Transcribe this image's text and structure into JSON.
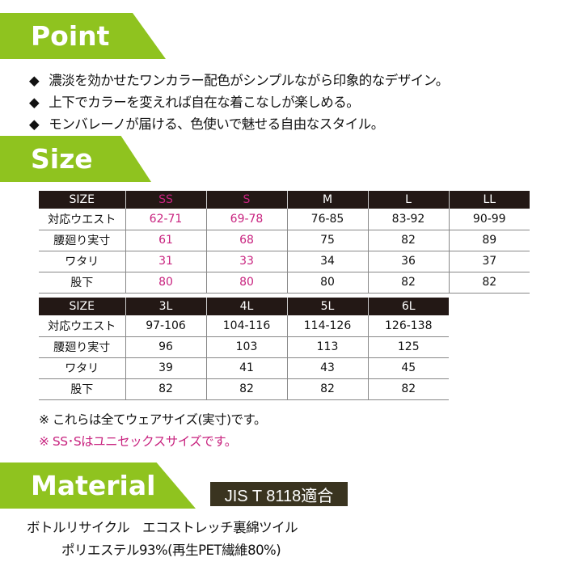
{
  "point": {
    "title": "Point",
    "bullet_icon": "diamond-icon",
    "items": [
      "濃淡を効かせたワンカラー配色がシンプルながら印象的なデザイン。",
      "上下でカラーを変えれば自在な着こなしが楽しめる。",
      "モンバレーノが届ける、色使いで魅せる自由なスタイル。"
    ]
  },
  "size": {
    "title": "Size",
    "table1": {
      "headers": [
        "SIZE",
        "SS",
        "S",
        "M",
        "L",
        "LL"
      ],
      "rows": [
        [
          "対応ウエスト",
          "62-71",
          "69-78",
          "76-85",
          "83-92",
          "90-99"
        ],
        [
          "腰廻り実寸",
          "61",
          "68",
          "75",
          "82",
          "89"
        ],
        [
          "ワタリ",
          "31",
          "33",
          "34",
          "36",
          "37"
        ],
        [
          "股下",
          "80",
          "80",
          "80",
          "82",
          "82"
        ]
      ]
    },
    "table2": {
      "headers": [
        "SIZE",
        "3L",
        "4L",
        "5L",
        "6L"
      ],
      "rows": [
        [
          "対応ウエスト",
          "97-106",
          "104-116",
          "114-126",
          "126-138"
        ],
        [
          "腰廻り実寸",
          "96",
          "103",
          "113",
          "125"
        ],
        [
          "ワタリ",
          "39",
          "41",
          "43",
          "45"
        ],
        [
          "股下",
          "82",
          "82",
          "82",
          "82"
        ]
      ]
    },
    "notes": [
      "※  これらは全てウェアサイズ(実寸)です。",
      "※  SS･Sはユニセックスサイズです。"
    ]
  },
  "material": {
    "title": "Material",
    "badge": "JIS T 8118適合",
    "line1": "ボトルリサイクル　エコストレッチ裏綿ツイル",
    "line2": "ポリエステル93%(再生PET繊維80%)"
  },
  "colors": {
    "accent_green": "#8fc31f",
    "highlight_pink": "#c8237f",
    "header_dark": "#231815"
  }
}
